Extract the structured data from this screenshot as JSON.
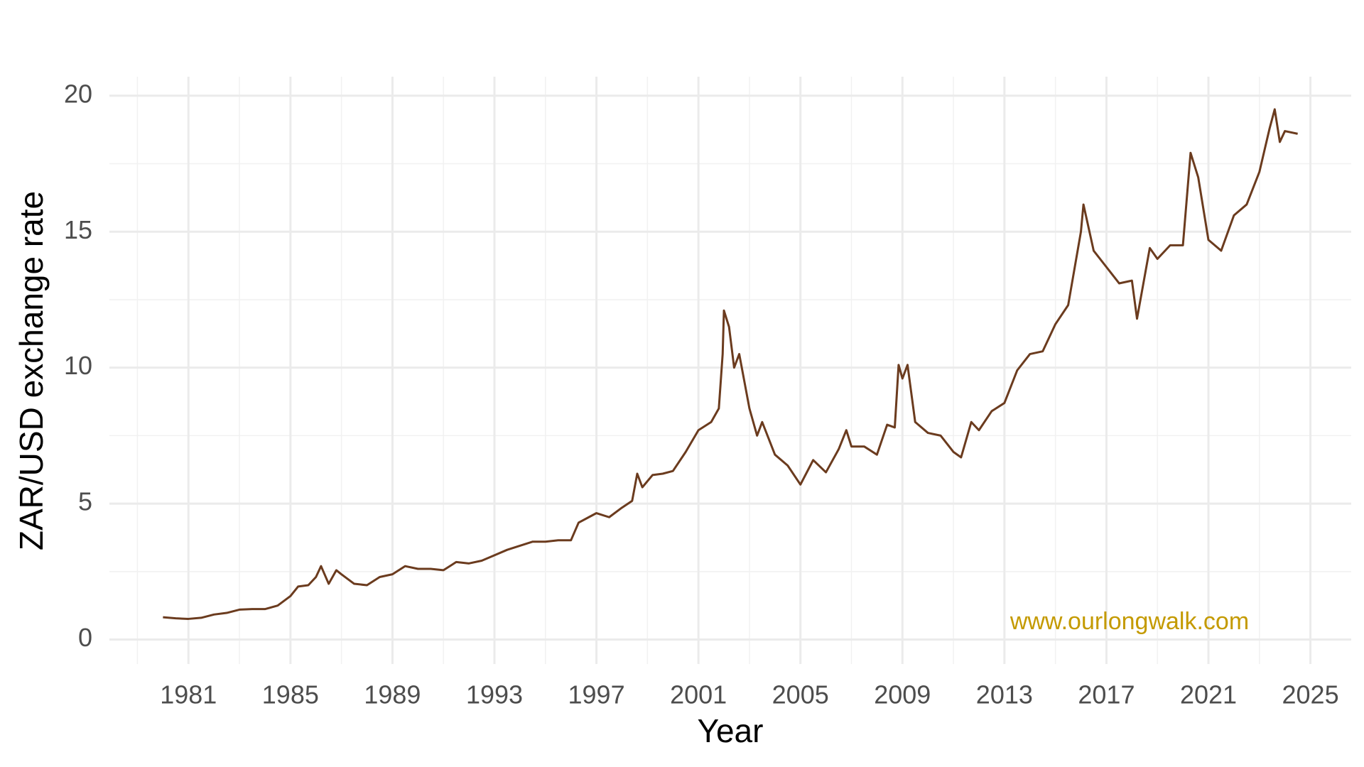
{
  "chart_data": {
    "type": "line",
    "x_label": "Year",
    "y_label": "ZAR/USD exchange rate",
    "annotation": "www.ourlongwalk.com",
    "annotation_color": "#c49a00",
    "grid": true,
    "xlim": [
      1977.9,
      2026.6
    ],
    "ylim": [
      -0.9,
      20.7
    ],
    "xticks": [
      1981,
      1985,
      1989,
      1993,
      1997,
      2001,
      2005,
      2009,
      2013,
      2017,
      2021,
      2025
    ],
    "yticks": [
      0,
      5,
      10,
      15,
      20
    ],
    "x_minor_ticks": [
      1979,
      1983,
      1987,
      1991,
      1995,
      1999,
      2003,
      2007,
      2011,
      2015,
      2019,
      2023
    ],
    "y_minor_ticks": [
      2.5,
      7.5,
      12.5,
      17.5
    ],
    "series": [
      {
        "name": "ZAR/USD",
        "color": "#6b3b1e",
        "x": [
          1980.0,
          1980.5,
          1981.0,
          1981.5,
          1982.0,
          1982.5,
          1983.0,
          1983.5,
          1984.0,
          1984.5,
          1985.0,
          1985.3,
          1985.7,
          1986.0,
          1986.2,
          1986.5,
          1986.8,
          1987.0,
          1987.5,
          1988.0,
          1988.5,
          1989.0,
          1989.5,
          1990.0,
          1990.5,
          1991.0,
          1991.5,
          1992.0,
          1992.5,
          1993.0,
          1993.5,
          1994.0,
          1994.5,
          1995.0,
          1995.5,
          1996.0,
          1996.3,
          1996.7,
          1997.0,
          1997.5,
          1998.0,
          1998.4,
          1998.6,
          1998.8,
          1999.2,
          1999.6,
          2000.0,
          2000.5,
          2001.0,
          2001.5,
          2001.8,
          2001.95,
          2002.0,
          2002.2,
          2002.4,
          2002.6,
          2003.0,
          2003.3,
          2003.5,
          2004.0,
          2004.5,
          2005.0,
          2005.5,
          2006.0,
          2006.5,
          2006.8,
          2007.0,
          2007.5,
          2008.0,
          2008.4,
          2008.7,
          2008.85,
          2009.0,
          2009.2,
          2009.5,
          2010.0,
          2010.5,
          2011.0,
          2011.3,
          2011.7,
          2012.0,
          2012.5,
          2013.0,
          2013.5,
          2014.0,
          2014.5,
          2015.0,
          2015.5,
          2016.0,
          2016.1,
          2016.5,
          2017.0,
          2017.5,
          2018.0,
          2018.2,
          2018.7,
          2019.0,
          2019.5,
          2020.0,
          2020.3,
          2020.6,
          2021.0,
          2021.5,
          2022.0,
          2022.5,
          2023.0,
          2023.4,
          2023.6,
          2023.8,
          2024.0,
          2024.5
        ],
        "values": [
          0.82,
          0.78,
          0.76,
          0.8,
          0.92,
          0.98,
          1.1,
          1.12,
          1.12,
          1.25,
          1.6,
          1.95,
          2.0,
          2.3,
          2.7,
          2.05,
          2.55,
          2.4,
          2.05,
          2.0,
          2.3,
          2.4,
          2.7,
          2.6,
          2.6,
          2.55,
          2.85,
          2.8,
          2.9,
          3.1,
          3.3,
          3.45,
          3.6,
          3.6,
          3.65,
          3.65,
          4.3,
          4.5,
          4.65,
          4.5,
          4.85,
          5.1,
          6.1,
          5.6,
          6.05,
          6.1,
          6.2,
          6.9,
          7.7,
          8.0,
          8.5,
          10.5,
          12.1,
          11.5,
          10.0,
          10.5,
          8.5,
          7.5,
          8.0,
          6.8,
          6.4,
          5.7,
          6.6,
          6.15,
          7.0,
          7.7,
          7.1,
          7.1,
          6.8,
          7.9,
          7.8,
          10.1,
          9.6,
          10.1,
          8.0,
          7.6,
          7.5,
          6.9,
          6.7,
          8.0,
          7.7,
          8.4,
          8.7,
          9.9,
          10.5,
          10.6,
          11.6,
          12.3,
          15.0,
          16.0,
          14.3,
          13.7,
          13.1,
          13.2,
          11.8,
          14.4,
          14.0,
          14.5,
          14.5,
          17.9,
          17.0,
          14.7,
          14.3,
          15.6,
          16.0,
          17.2,
          18.8,
          19.5,
          18.3,
          18.7,
          18.6
        ]
      }
    ]
  }
}
